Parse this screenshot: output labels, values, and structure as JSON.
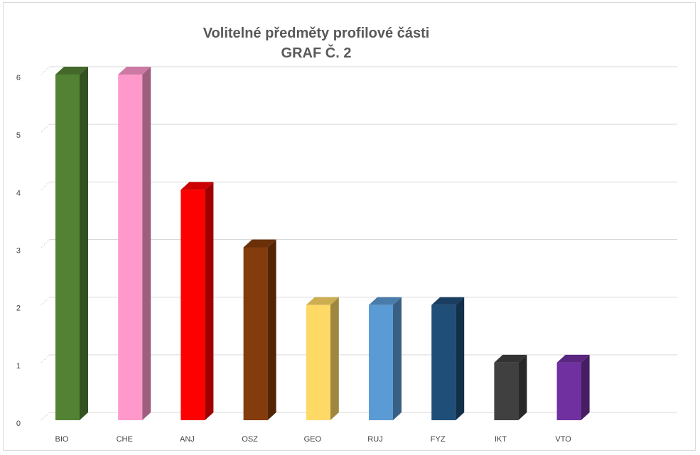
{
  "chart_data": {
    "type": "bar",
    "title": "Volitelné předměty profilové části",
    "subtitle": "GRAF Č. 2",
    "categories": [
      "BIO",
      "CHE",
      "ANJ",
      "OSZ",
      "GEO",
      "RUJ",
      "FYZ",
      "IKT",
      "VTO"
    ],
    "values": [
      6,
      6,
      4,
      3,
      2,
      2,
      2,
      1,
      1
    ],
    "colors": [
      "#548235",
      "#ff99cc",
      "#ff0000",
      "#843c0c",
      "#ffd966",
      "#5b9bd5",
      "#1f4e79",
      "#404040",
      "#7030a0"
    ],
    "yticks": [
      "0",
      "1",
      "2",
      "3",
      "4",
      "5",
      "6"
    ],
    "ylim": [
      0,
      6
    ],
    "grid": true,
    "legend": "none",
    "style": "3d-column"
  }
}
